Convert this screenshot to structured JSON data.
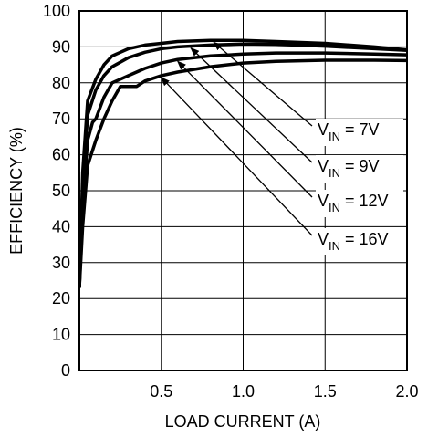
{
  "chart_data": {
    "type": "line",
    "title": "",
    "xlabel": "LOAD CURRENT (A)",
    "ylabel": "EFFICIENCY (%)",
    "xlim": [
      0,
      2.0
    ],
    "ylim": [
      0,
      100
    ],
    "x_ticks": [
      "0.5",
      "1.0",
      "1.5",
      "2.0"
    ],
    "y_ticks": [
      "0",
      "10",
      "20",
      "30",
      "40",
      "50",
      "60",
      "70",
      "80",
      "90",
      "100"
    ],
    "grid": true,
    "series": [
      {
        "name": "VIN = 7V",
        "x": [
          0.0,
          0.02,
          0.05,
          0.1,
          0.15,
          0.2,
          0.3,
          0.4,
          0.5,
          0.6,
          0.8,
          1.0,
          1.2,
          1.5,
          1.8,
          2.0
        ],
        "y": [
          23,
          55,
          75,
          81,
          85,
          87.5,
          89.5,
          90.5,
          91,
          91.5,
          91.8,
          91.8,
          91.5,
          91,
          90,
          89.2
        ]
      },
      {
        "name": "VIN = 9V",
        "x": [
          0.0,
          0.02,
          0.05,
          0.1,
          0.15,
          0.2,
          0.3,
          0.4,
          0.5,
          0.6,
          0.8,
          1.0,
          1.2,
          1.5,
          1.8,
          2.0
        ],
        "y": [
          23,
          50,
          71,
          78,
          82,
          84.5,
          87,
          88.5,
          89.5,
          90,
          90.5,
          90.8,
          90.7,
          90.2,
          89.5,
          89
        ]
      },
      {
        "name": "VIN = 12V",
        "x": [
          0.0,
          0.02,
          0.05,
          0.08,
          0.1,
          0.15,
          0.2,
          0.3,
          0.4,
          0.5,
          0.6,
          0.8,
          1.0,
          1.2,
          1.5,
          1.8,
          2.0
        ],
        "y": [
          23,
          45,
          64,
          69,
          70,
          76,
          80,
          82,
          84,
          85.5,
          86.5,
          87.5,
          88,
          88.3,
          88.3,
          88,
          87.8
        ]
      },
      {
        "name": "VIN = 16V",
        "x": [
          0.0,
          0.02,
          0.05,
          0.1,
          0.15,
          0.2,
          0.25,
          0.3,
          0.35,
          0.4,
          0.5,
          0.6,
          0.8,
          1.0,
          1.2,
          1.5,
          1.8,
          2.0
        ],
        "y": [
          23,
          40,
          57,
          64,
          70,
          75,
          79,
          79,
          79,
          80.5,
          82,
          83,
          84.5,
          85.5,
          86,
          86.3,
          86.3,
          86.2
        ]
      }
    ],
    "annotations": [
      {
        "main": "V",
        "sub": "IN",
        "rest": " = 7V",
        "series": 0,
        "arrow_x": 0.82
      },
      {
        "main": "V",
        "sub": "IN",
        "rest": " = 9V",
        "series": 1,
        "arrow_x": 0.68
      },
      {
        "main": "V",
        "sub": "IN",
        "rest": " = 12V",
        "series": 2,
        "arrow_x": 0.6
      },
      {
        "main": "V",
        "sub": "IN",
        "rest": " = 16V",
        "series": 3,
        "arrow_x": 0.5
      }
    ]
  }
}
